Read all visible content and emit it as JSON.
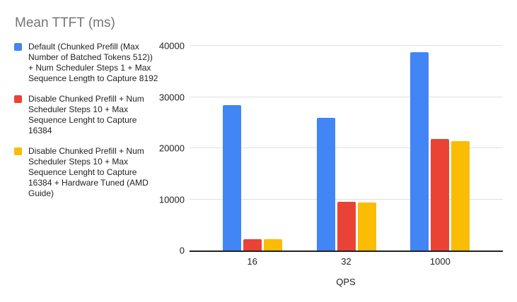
{
  "chart_data": {
    "type": "bar",
    "title": "Mean TTFT (ms)",
    "xlabel": "QPS",
    "ylabel": "",
    "categories": [
      "16",
      "32",
      "1000"
    ],
    "series": [
      {
        "name": "Default (Chunked Prefill (Max Number of Batched Tokens 512)) + Num Scheduler Steps 1 + Max Sequence Length to Capture 8192",
        "color": "#4285F4",
        "values": [
          28400,
          26000,
          38700
        ]
      },
      {
        "name": "Disable Chunked Prefill + Num Scheduler Steps 10 + Max Sequence Lenght to Capture 16384",
        "color": "#EA4335",
        "values": [
          2200,
          9500,
          21800
        ]
      },
      {
        "name": "Disable Chunked Prefill + Num Scheduler Steps 10 + Max Sequence Lenght to Capture 16384 + Hardware Tuned (AMD Guide)",
        "color": "#FBBC04",
        "values": [
          2200,
          9400,
          21400
        ]
      }
    ],
    "ylim": [
      0,
      40000
    ],
    "yticks": [
      0,
      10000,
      20000,
      30000,
      40000
    ],
    "grid": true,
    "legend_position": "left",
    "background": "#ffffff",
    "gridline_color": "#e0e0e0",
    "axis_line_color": "#212121",
    "title_color": "#757575",
    "label_color": "#222222"
  }
}
